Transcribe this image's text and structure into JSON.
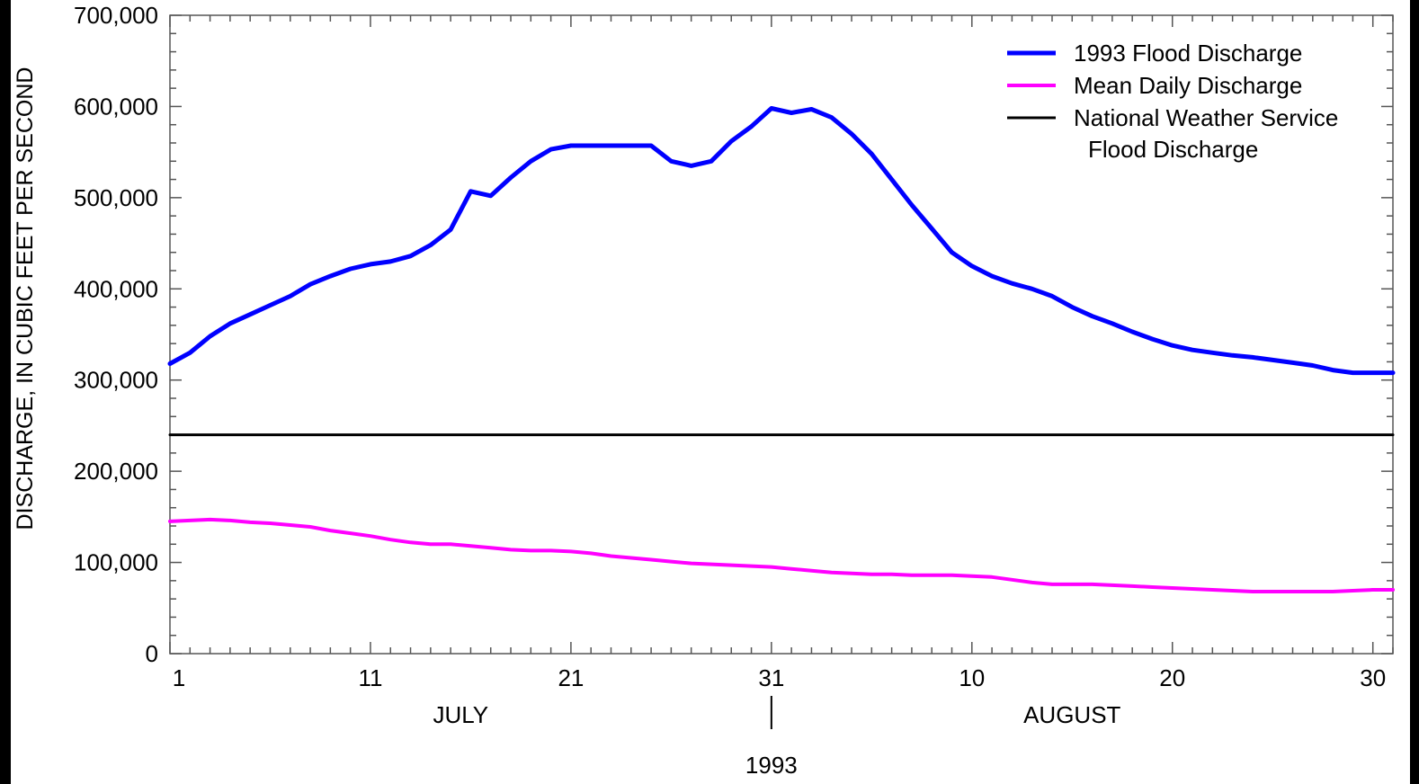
{
  "chart_data": {
    "type": "line",
    "ylabel": "DISCHARGE, IN CUBIC FEET PER SECOND",
    "ylim": [
      0,
      700000
    ],
    "yticks": [
      {
        "value": 0,
        "label": "0"
      },
      {
        "value": 100000,
        "label": "100,000"
      },
      {
        "value": 200000,
        "label": "200,000"
      },
      {
        "value": 300000,
        "label": "300,000"
      },
      {
        "value": 400000,
        "label": "400,000"
      },
      {
        "value": 500000,
        "label": "500,000"
      },
      {
        "value": 600000,
        "label": "600,000"
      },
      {
        "value": 700000,
        "label": "700,000"
      }
    ],
    "xlim": [
      1,
      62
    ],
    "xticks": [
      {
        "day": 1,
        "label": "1"
      },
      {
        "day": 11,
        "label": "11"
      },
      {
        "day": 21,
        "label": "21"
      },
      {
        "day": 31,
        "label": "31"
      },
      {
        "day": 41,
        "label": "10"
      },
      {
        "day": 51,
        "label": "20"
      },
      {
        "day": 61,
        "label": "30"
      }
    ],
    "month_labels": [
      {
        "day": 15.5,
        "label": "JULY"
      },
      {
        "day": 46,
        "label": "AUGUST"
      }
    ],
    "month_divider_day": 31,
    "year_label": "1993",
    "legend_position": "top-right",
    "series": [
      {
        "name": "1993 Flood Discharge",
        "color": "#0000ff",
        "x": [
          1,
          2,
          3,
          4,
          5,
          6,
          7,
          8,
          9,
          10,
          11,
          12,
          13,
          14,
          15,
          16,
          17,
          18,
          19,
          20,
          21,
          22,
          23,
          24,
          25,
          26,
          27,
          28,
          29,
          30,
          31,
          32,
          33,
          34,
          35,
          36,
          37,
          38,
          39,
          40,
          41,
          42,
          43,
          44,
          45,
          46,
          47,
          48,
          49,
          50,
          51,
          52,
          53,
          54,
          55,
          56,
          57,
          58,
          59,
          60,
          61,
          62
        ],
        "values": [
          318000,
          330000,
          348000,
          362000,
          372000,
          382000,
          392000,
          405000,
          414000,
          422000,
          427000,
          430000,
          436000,
          448000,
          465000,
          507000,
          502000,
          522000,
          540000,
          553000,
          557000,
          557000,
          557000,
          557000,
          557000,
          540000,
          535000,
          540000,
          562000,
          578000,
          598000,
          593000,
          597000,
          588000,
          570000,
          548000,
          520000,
          492000,
          466000,
          440000,
          425000,
          414000,
          406000,
          400000,
          392000,
          380000,
          370000,
          362000,
          353000,
          345000,
          338000,
          333000,
          330000,
          327000,
          325000,
          322000,
          319000,
          316000,
          311000,
          308000,
          308000,
          308000
        ]
      },
      {
        "name": "Mean Daily Discharge",
        "color": "#ff00ff",
        "x": [
          1,
          2,
          3,
          4,
          5,
          6,
          7,
          8,
          9,
          10,
          11,
          12,
          13,
          14,
          15,
          16,
          17,
          18,
          19,
          20,
          21,
          22,
          23,
          24,
          25,
          26,
          27,
          28,
          29,
          30,
          31,
          32,
          33,
          34,
          35,
          36,
          37,
          38,
          39,
          40,
          41,
          42,
          43,
          44,
          45,
          46,
          47,
          48,
          49,
          50,
          51,
          52,
          53,
          54,
          55,
          56,
          57,
          58,
          59,
          60,
          61,
          62
        ],
        "values": [
          145000,
          146000,
          147000,
          146000,
          144000,
          143000,
          141000,
          139000,
          135000,
          132000,
          129000,
          125000,
          122000,
          120000,
          120000,
          118000,
          116000,
          114000,
          113000,
          113000,
          112000,
          110000,
          107000,
          105000,
          103000,
          101000,
          99000,
          98000,
          97000,
          96000,
          95000,
          93000,
          91000,
          89000,
          88000,
          87000,
          87000,
          86000,
          86000,
          86000,
          85000,
          84000,
          81000,
          78000,
          76000,
          76000,
          76000,
          75000,
          74000,
          73000,
          72000,
          71000,
          70000,
          69000,
          68000,
          68000,
          68000,
          68000,
          68000,
          69000,
          70000,
          70000
        ]
      },
      {
        "name": "National Weather Service\nFlood Discharge",
        "color": "#000000",
        "x": [
          1,
          62
        ],
        "values": [
          240000,
          240000
        ]
      }
    ]
  }
}
